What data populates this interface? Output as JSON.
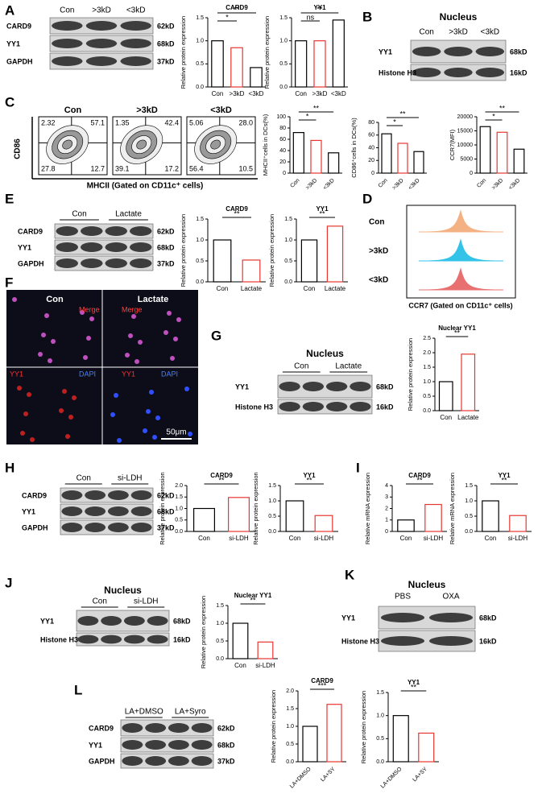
{
  "panels": [
    "A",
    "B",
    "C",
    "D",
    "E",
    "F",
    "G",
    "H",
    "I",
    "J",
    "K",
    "L"
  ],
  "blots": [
    {
      "title": null,
      "groups": [
        "Con",
        ">3kD",
        "<3kD"
      ],
      "rows": [
        {
          "label": "CARD9",
          "size": "62kD"
        },
        {
          "label": "YY1",
          "size": "68kD"
        },
        {
          "label": "GAPDH",
          "size": "37kD"
        }
      ]
    },
    {
      "title": "Nucleus",
      "groups": [
        "Con",
        ">3kD",
        "<3kD"
      ],
      "rows": [
        {
          "label": "YY1",
          "size": "68kD"
        },
        {
          "label": "Histone H3",
          "size": "16kD"
        }
      ]
    },
    {
      "title": null,
      "groups": [
        "Con",
        "Lactate"
      ],
      "rows": [
        {
          "label": "CARD9",
          "size": "62kD"
        },
        {
          "label": "YY1",
          "size": "68kD"
        },
        {
          "label": "GAPDH",
          "size": "37kD"
        }
      ]
    },
    {
      "title": "Nucleus",
      "groups": [
        "Con",
        "Lactate"
      ],
      "rows": [
        {
          "label": "YY1",
          "size": "68kD"
        },
        {
          "label": "Histone H3",
          "size": "16kD"
        }
      ]
    },
    {
      "title": null,
      "groups": [
        "Con",
        "si-LDH"
      ],
      "rows": [
        {
          "label": "CARD9",
          "size": "62kD"
        },
        {
          "label": "YY1",
          "size": "68kD"
        },
        {
          "label": "GAPDH",
          "size": "37kD"
        }
      ]
    },
    {
      "title": "Nucleus",
      "groups": [
        "Con",
        "si-LDH"
      ],
      "rows": [
        {
          "label": "YY1",
          "size": "68kD"
        },
        {
          "label": "Histone H3",
          "size": "16kD"
        }
      ]
    },
    {
      "title": "Nucleus",
      "groups": [
        "PBS",
        "OXA"
      ],
      "rows": [
        {
          "label": "YY1",
          "size": "68kD"
        },
        {
          "label": "Histone H3",
          "size": "16kD"
        }
      ]
    },
    {
      "title": null,
      "groups": [
        "LA+DMSO",
        "LA+Syro"
      ],
      "rows": [
        {
          "label": "CARD9",
          "size": "62kD"
        },
        {
          "label": "YY1",
          "size": "68kD"
        },
        {
          "label": "GAPDH",
          "size": "37kD"
        }
      ]
    }
  ],
  "flow": {
    "y_label": "CD86",
    "x_label": "MHCII (Gated on CD11c⁺ cells)",
    "plots": [
      {
        "title": "Con",
        "quadrants": [
          "2.32",
          "57.1",
          "27.8",
          "12.7"
        ]
      },
      {
        "title": ">3kD",
        "quadrants": [
          "1.35",
          "42.4",
          "39.1",
          "17.2"
        ]
      },
      {
        "title": "<3kD",
        "quadrants": [
          "5.06",
          "28.0",
          "56.4",
          "10.5"
        ]
      }
    ]
  },
  "histogram": {
    "x_label": "CCR7 (Gated on CD11c⁺ cells)",
    "rows": [
      {
        "label": "Con",
        "color": "#f4b183"
      },
      {
        "label": ">3kD",
        "color": "#33c3e8"
      },
      {
        "label": "<3kD",
        "color": "#e87070"
      }
    ]
  },
  "image": {
    "left": "Con",
    "right": "Lactate",
    "merge": "Merge",
    "yy1": "YY1",
    "dapi": "DAPI",
    "scale": "50μm"
  },
  "chart_data": [
    {
      "type": "bar",
      "title": "CARD9",
      "y_label": "Relative protein expression",
      "categories": [
        "Con",
        ">3kD",
        "<3kD"
      ],
      "values": [
        1.0,
        0.85,
        0.42
      ],
      "colors": [
        "#000000",
        "#e8362f",
        "#000000"
      ],
      "ylim": [
        0,
        1.5
      ],
      "yticks": [
        {
          "value": 0,
          "label": "0.0"
        },
        0.5,
        {
          "value": 1,
          "label": "1.0"
        },
        1.5
      ],
      "significance": [
        "*",
        "**"
      ]
    },
    {
      "type": "bar",
      "title": "YY1",
      "y_label": "Relative protein expression",
      "categories": [
        "Con",
        ">3kD",
        "<3kD"
      ],
      "values": [
        1.0,
        1.0,
        1.45
      ],
      "colors": [
        "#000000",
        "#e8362f",
        "#000000"
      ],
      "ylim": [
        0,
        1.5
      ],
      "yticks": [
        {
          "value": 0,
          "label": "0.0"
        },
        0.5,
        {
          "value": 1,
          "label": "1.0"
        },
        1.5
      ],
      "significance": [
        "ns",
        "**"
      ]
    },
    {
      "type": "bar",
      "title": null,
      "y_label": "MHCII⁺cells in DCs(%)",
      "categories": [
        "Con",
        ">3kD",
        "<3kD"
      ],
      "values": [
        72,
        58,
        36
      ],
      "colors": [
        "#000000",
        "#e8362f",
        "#000000"
      ],
      "ylim": [
        0,
        100
      ],
      "yticks": [
        0,
        20,
        40,
        60,
        80,
        100
      ],
      "significance": [
        "*",
        "**"
      ]
    },
    {
      "type": "bar",
      "title": null,
      "y_label": "CD86⁺cells in DCs(%)",
      "categories": [
        "Con",
        ">3kD",
        "<3kD"
      ],
      "values": [
        62,
        47,
        34
      ],
      "colors": [
        "#000000",
        "#e8362f",
        "#000000"
      ],
      "ylim": [
        0,
        80
      ],
      "yticks": [
        0,
        20,
        40,
        60,
        80
      ],
      "significance": [
        "*",
        "**"
      ]
    },
    {
      "type": "bar",
      "title": null,
      "y_label": "CCR7(MFI)",
      "categories": [
        "Con",
        ">3kD",
        "<3kD"
      ],
      "values": [
        16500,
        14500,
        8500
      ],
      "colors": [
        "#000000",
        "#e8362f",
        "#000000"
      ],
      "ylim": [
        0,
        20000
      ],
      "yticks": [
        0,
        5000,
        10000,
        15000,
        20000
      ],
      "significance": [
        "*",
        "**"
      ]
    },
    {
      "type": "bar",
      "title": "CARD9",
      "y_label": "Relative protein expression",
      "categories": [
        "Con",
        "Lactate"
      ],
      "values": [
        1.0,
        0.52
      ],
      "colors": [
        "#000000",
        "#e8362f"
      ],
      "ylim": [
        0,
        1.5
      ],
      "yticks": [
        {
          "value": 0,
          "label": "0.0"
        },
        0.5,
        {
          "value": 1,
          "label": "1.0"
        },
        1.5
      ],
      "significance": [
        "**"
      ]
    },
    {
      "type": "bar",
      "title": "YY1",
      "y_label": "Relative protein expression",
      "categories": [
        "Con",
        "Lactate"
      ],
      "values": [
        1.0,
        1.33
      ],
      "colors": [
        "#000000",
        "#e8362f"
      ],
      "ylim": [
        0,
        1.5
      ],
      "yticks": [
        {
          "value": 0,
          "label": "0.0"
        },
        0.5,
        {
          "value": 1,
          "label": "1.0"
        },
        1.5
      ],
      "significance": [
        "**"
      ]
    },
    {
      "type": "bar",
      "title": "Nuclear YY1",
      "y_label": "Relative protein expression",
      "categories": [
        "Con",
        "Lactate"
      ],
      "values": [
        1.0,
        1.95
      ],
      "colors": [
        "#000000",
        "#e8362f"
      ],
      "ylim": [
        0,
        2.5
      ],
      "yticks": [
        {
          "value": 0,
          "label": "0.0"
        },
        0.5,
        {
          "value": 1,
          "label": "1.0"
        },
        1.5,
        {
          "value": 2,
          "label": "2.0"
        },
        2.5
      ],
      "significance": [
        "**"
      ]
    },
    {
      "type": "bar",
      "title": "CARD9",
      "y_label": "Relative protein expression",
      "categories": [
        "Con",
        "si-LDH"
      ],
      "values": [
        1.0,
        1.48
      ],
      "colors": [
        "#000000",
        "#e8362f"
      ],
      "ylim": [
        0,
        2
      ],
      "yticks": [
        {
          "value": 0,
          "label": "0.0"
        },
        0.5,
        {
          "value": 1,
          "label": "1.0"
        },
        1.5,
        {
          "value": 2,
          "label": "2.0"
        }
      ],
      "significance": [
        "**"
      ]
    },
    {
      "type": "bar",
      "title": "YY1",
      "y_label": "Relative protein expression",
      "categories": [
        "Con",
        "si-LDH"
      ],
      "values": [
        1.0,
        0.52
      ],
      "colors": [
        "#000000",
        "#e8362f"
      ],
      "ylim": [
        0,
        1.5
      ],
      "yticks": [
        {
          "value": 0,
          "label": "0.0"
        },
        0.5,
        {
          "value": 1,
          "label": "1.0"
        },
        1.5
      ],
      "significance": [
        "**"
      ]
    },
    {
      "type": "bar",
      "title": "CARD9",
      "y_label": "Relative mRNA expression",
      "categories": [
        "Con",
        "si-LDH"
      ],
      "values": [
        1.0,
        2.35
      ],
      "colors": [
        "#000000",
        "#e8362f"
      ],
      "ylim": [
        0,
        4
      ],
      "yticks": [
        0,
        1,
        2,
        3,
        4
      ],
      "significance": [
        "**"
      ]
    },
    {
      "type": "bar",
      "title": "YY1",
      "y_label": "Relative mRNA expression",
      "categories": [
        "Con",
        "si-LDH"
      ],
      "values": [
        1.0,
        0.52
      ],
      "colors": [
        "#000000",
        "#e8362f"
      ],
      "ylim": [
        0,
        1.5
      ],
      "yticks": [
        {
          "value": 0,
          "label": "0.0"
        },
        0.5,
        {
          "value": 1,
          "label": "1.0"
        },
        1.5
      ],
      "significance": [
        "**"
      ]
    },
    {
      "type": "bar",
      "title": "Nuclear YY1",
      "y_label": "Relative protein expression",
      "categories": [
        "Con",
        "si-LDH"
      ],
      "values": [
        1.0,
        0.47
      ],
      "colors": [
        "#000000",
        "#e8362f"
      ],
      "ylim": [
        0,
        1.5
      ],
      "yticks": [
        {
          "value": 0,
          "label": "0.0"
        },
        0.5,
        {
          "value": 1,
          "label": "1.0"
        },
        1.5
      ],
      "significance": [
        "**"
      ]
    },
    {
      "type": "bar",
      "title": "CARD9",
      "y_label": "Relative protein expression",
      "categories": [
        "LA+DMSO",
        "LA+SY"
      ],
      "values": [
        1.0,
        1.62
      ],
      "colors": [
        "#000000",
        "#e8362f"
      ],
      "ylim": [
        0,
        2
      ],
      "yticks": [
        {
          "value": 0,
          "label": "0.0"
        },
        0.5,
        {
          "value": 1,
          "label": "1.0"
        },
        1.5,
        {
          "value": 2,
          "label": "2.0"
        }
      ],
      "significance": [
        "***"
      ]
    },
    {
      "type": "bar",
      "title": "YY1",
      "y_label": "Relative protein expression",
      "categories": [
        "LA+DMSO",
        "LA+SY"
      ],
      "values": [
        1.0,
        0.62
      ],
      "colors": [
        "#000000",
        "#e8362f"
      ],
      "ylim": [
        0,
        1.5
      ],
      "yticks": [
        {
          "value": 0,
          "label": "0.0"
        },
        0.5,
        {
          "value": 1,
          "label": "1.0"
        },
        1.5
      ],
      "significance": [
        "**"
      ]
    }
  ]
}
